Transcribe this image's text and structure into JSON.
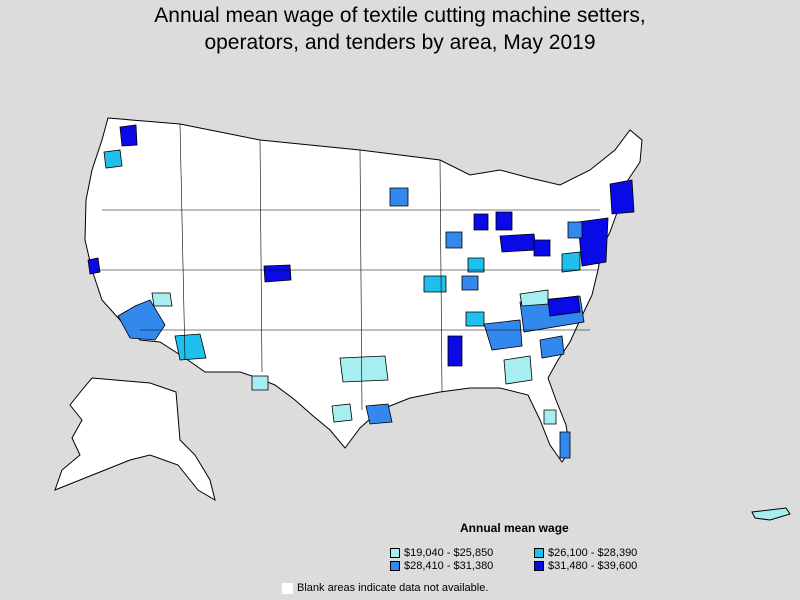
{
  "title_line1": "Annual mean wage of textile cutting machine setters,",
  "title_line2": "operators, and tenders by area, May 2019",
  "legend": {
    "title": "Annual mean wage",
    "items": [
      {
        "label": "$19,040 - $25,850",
        "color": "#a6eef0"
      },
      {
        "label": "$26,100 - $28,390",
        "color": "#1fc0ee"
      },
      {
        "label": "$28,410 - $31,380",
        "color": "#3388ee"
      },
      {
        "label": "$31,480 - $39,600",
        "color": "#0a0ae6"
      }
    ]
  },
  "note": "Blank areas indicate data not available.",
  "colors": {
    "background": "#dcdcdc",
    "blank": "#ffffff",
    "border": "#000000"
  }
}
